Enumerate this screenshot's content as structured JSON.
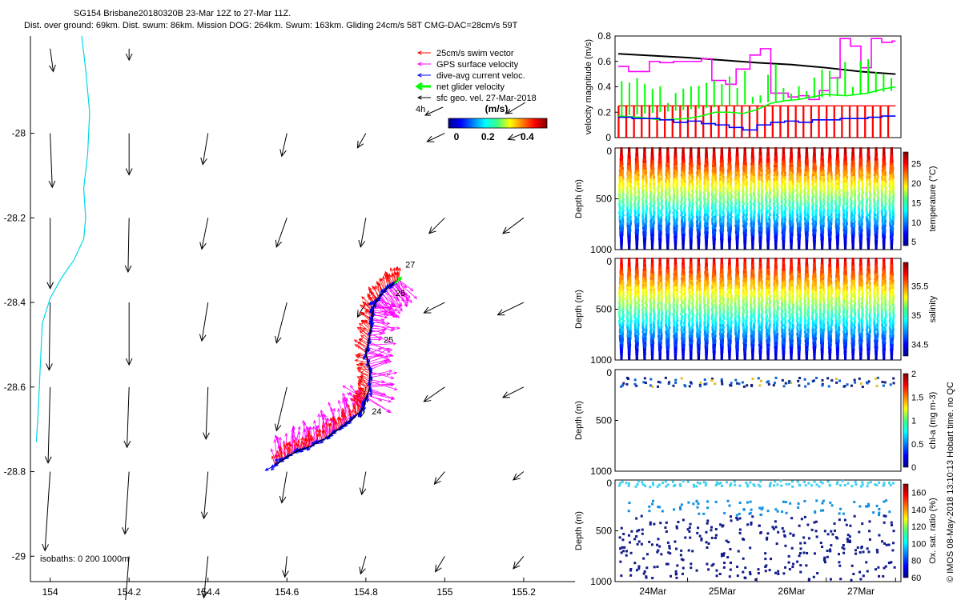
{
  "title": {
    "line1": "SG154 Brisbane20180320B 23-Mar 12Z to 27-Mar 11Z.",
    "line2": "Dist. over ground: 69km. Dist. swum: 86km. Mission DOG: 264km. Swum: 163km. Gliding 24cm/s 58T CMG-DAC=28cm/s 59T"
  },
  "footer": "© IMOS 08-May-2018 13:10:13 Hobart time. no QC",
  "colors": {
    "swim": "#ff0000",
    "gps": "#ff00ff",
    "dac": "#0000ff",
    "net": "#00ff00",
    "geo": "#000000",
    "isobath": "#00d8e8"
  },
  "chart_data": [
    {
      "type": "map",
      "name": "track-map",
      "xlim": [
        153.95,
        155.33
      ],
      "ylim": [
        -29.06,
        -27.77
      ],
      "xticks": [
        154,
        154.2,
        154.4,
        154.6,
        154.8,
        155,
        155.2
      ],
      "yticks": [
        -28,
        -28.2,
        -28.4,
        -28.6,
        -28.8,
        -29
      ],
      "xtick_labels": [
        "154",
        "154.2",
        "154.4",
        "154.6",
        "154.8",
        "155",
        "155.2"
      ],
      "ytick_labels": [
        "-28",
        "-28.2",
        "-28.4",
        "-28.6",
        "-28.8",
        "-29"
      ],
      "legend": {
        "position": "top-right",
        "entries": [
          {
            "label": "25cm/s swim vector",
            "color": "#ff0000"
          },
          {
            "label": "GPS surface velocity",
            "color": "#ff00ff"
          },
          {
            "label": "dive-avg current veloc.",
            "color": "#0000ff"
          },
          {
            "label": "net glider velocity",
            "color": "#00ff00"
          },
          {
            "label": "sfc geo. vel. 27-Mar-2018",
            "color": "#000000"
          }
        ]
      },
      "scale_label": "4h",
      "colorbar": {
        "title": "(m/s)",
        "ticks": [
          "0",
          "0.2",
          "0.4"
        ],
        "range": [
          0,
          0.5
        ]
      },
      "isobaths_label": "isobaths: 0   200  1000m",
      "isobath": [
        [
          154.08,
          -27.77
        ],
        [
          154.09,
          -27.85
        ],
        [
          154.1,
          -27.95
        ],
        [
          154.095,
          -28.05
        ],
        [
          154.085,
          -28.13
        ],
        [
          154.09,
          -28.2
        ],
        [
          154.085,
          -28.25
        ],
        [
          154.06,
          -28.3
        ],
        [
          154.03,
          -28.34
        ],
        [
          154.0,
          -28.39
        ],
        [
          153.98,
          -28.45
        ],
        [
          153.975,
          -28.55
        ],
        [
          153.97,
          -28.65
        ],
        [
          153.965,
          -28.73
        ]
      ],
      "track": [
        [
          154.57,
          -28.785
        ],
        [
          154.6,
          -28.765
        ],
        [
          154.63,
          -28.75
        ],
        [
          154.66,
          -28.74
        ],
        [
          154.7,
          -28.72
        ],
        [
          154.73,
          -28.7
        ],
        [
          154.76,
          -28.68
        ],
        [
          154.79,
          -28.655
        ],
        [
          154.8,
          -28.63
        ],
        [
          154.81,
          -28.6
        ],
        [
          154.81,
          -28.56
        ],
        [
          154.8,
          -28.52
        ],
        [
          154.81,
          -28.48
        ],
        [
          154.815,
          -28.44
        ],
        [
          154.82,
          -28.41
        ],
        [
          154.83,
          -28.39
        ],
        [
          154.85,
          -28.37
        ],
        [
          154.87,
          -28.355
        ],
        [
          154.885,
          -28.345
        ]
      ],
      "day_labels": [
        {
          "label": "24",
          "lon": 154.815,
          "lat": -28.665
        },
        {
          "label": "25",
          "lon": 154.845,
          "lat": -28.495
        },
        {
          "label": "26",
          "lon": 154.875,
          "lat": -28.385
        },
        {
          "label": "27",
          "lon": 154.9,
          "lat": -28.318
        }
      ],
      "geo_vectors": {
        "lons": [
          154,
          154.2,
          154.4,
          154.6,
          154.8,
          155,
          155.2
        ],
        "lats": [
          -27.8,
          -28,
          -28.2,
          -28.4,
          -28.6,
          -28.8,
          -29
        ],
        "vel": [
          [
            [
              0.03,
              -0.22
            ],
            [
              0,
              -0.11
            ],
            null,
            null,
            null,
            null,
            null
          ],
          [
            [
              0.02,
              -0.52
            ],
            [
              0,
              -0.4
            ],
            [
              -0.05,
              -0.3
            ],
            [
              -0.05,
              -0.22
            ],
            [
              -0.08,
              -0.14
            ],
            [
              -0.17,
              -0.08
            ],
            [
              -0.15,
              -0.06
            ]
          ],
          [
            [
              0,
              -0.68
            ],
            [
              -0.01,
              -0.52
            ],
            [
              -0.06,
              -0.3
            ],
            [
              -0.1,
              -0.28
            ],
            [
              -0.05,
              -0.28
            ],
            [
              -0.15,
              -0.15
            ],
            [
              -0.2,
              -0.15
            ]
          ],
          [
            [
              -0.01,
              -0.65
            ],
            [
              0,
              -0.6
            ],
            [
              -0.06,
              -0.37
            ],
            [
              -0.1,
              -0.39
            ],
            [
              -0.08,
              -0.14
            ],
            [
              -0.2,
              -0.1
            ],
            [
              -0.25,
              -0.12
            ]
          ],
          [
            [
              -0.02,
              -0.73
            ],
            [
              -0.02,
              -0.58
            ],
            [
              -0.02,
              -0.5
            ],
            [
              -0.1,
              -0.42
            ],
            [
              -0.05,
              -0.29
            ],
            [
              -0.2,
              -0.14
            ],
            [
              -0.2,
              -0.1
            ]
          ],
          [
            [
              -0.05,
              -0.76
            ],
            [
              -0.04,
              -0.6
            ],
            [
              -0.04,
              -0.45
            ],
            [
              -0.05,
              -0.3
            ],
            [
              -0.04,
              -0.22
            ],
            [
              -0.1,
              -0.12
            ],
            [
              -0.1,
              -0.08
            ]
          ],
          [
            [
              -0.04,
              -0.71
            ],
            [
              -0.04,
              -0.5
            ],
            [
              -0.04,
              -0.4
            ],
            [
              -0.02,
              -0.2
            ],
            [
              -0.05,
              -0.17
            ],
            [
              -0.09,
              -0.15
            ],
            [
              -0.1,
              -0.12
            ]
          ]
        ]
      }
    },
    {
      "type": "line",
      "name": "velocity-timeseries",
      "ylabel": "velocity magnitude (m/s)",
      "ylim": [
        0,
        0.8
      ],
      "yticks": [
        "0",
        "0.2",
        "0.4",
        "0.6",
        "0.8"
      ],
      "series": [
        {
          "name": "geo velocity",
          "color": "#000000",
          "step": false,
          "t": [
            0,
            0.5,
            1,
            1.5,
            2,
            2.5,
            3,
            3.5,
            4
          ],
          "values": [
            0.66,
            0.645,
            0.63,
            0.61,
            0.59,
            0.575,
            0.55,
            0.52,
            0.5
          ]
        },
        {
          "name": "GPS surface velocity",
          "color": "#ff00ff",
          "step": true,
          "t": [
            0,
            0.15,
            0.3,
            0.45,
            0.6,
            0.8,
            1.0,
            1.2,
            1.35,
            1.55,
            1.7,
            1.9,
            2.05,
            2.2,
            2.45,
            2.6,
            2.75,
            2.9,
            3.05,
            3.2,
            3.35,
            3.5,
            3.65,
            3.8,
            3.95
          ],
          "values": [
            0.56,
            0.52,
            0.52,
            0.6,
            0.59,
            0.6,
            0.6,
            0.62,
            0.45,
            0.42,
            0.54,
            0.65,
            0.7,
            0.35,
            0.32,
            0.33,
            0.3,
            0.37,
            0.47,
            0.78,
            0.72,
            0.55,
            0.78,
            0.75,
            0.76
          ]
        },
        {
          "name": "25cm/s swim vector",
          "color": "#ff0000",
          "step": false,
          "spiky": true,
          "base": 0.0,
          "level": 0.25,
          "t": [],
          "values": []
        },
        {
          "name": "net glider velocity",
          "color": "#00ff00",
          "step": false,
          "t": [
            0,
            0.3,
            0.6,
            1.0,
            1.2,
            1.4,
            1.6,
            1.8,
            2.0,
            2.2,
            2.4,
            2.6,
            2.8,
            3.0,
            3.3,
            3.6,
            3.8,
            4.0
          ],
          "values": [
            0.17,
            0.16,
            0.14,
            0.15,
            0.17,
            0.2,
            0.2,
            0.19,
            0.22,
            0.27,
            0.29,
            0.3,
            0.32,
            0.34,
            0.33,
            0.35,
            0.38,
            0.4
          ]
        },
        {
          "name": "dive-avg current veloc.",
          "color": "#0000ff",
          "step": true,
          "t": [
            0,
            0.2,
            0.4,
            0.6,
            0.8,
            1.0,
            1.2,
            1.4,
            1.6,
            1.8,
            2.0,
            2.2,
            2.4,
            2.6,
            2.8,
            3.0,
            3.2,
            3.4,
            3.6,
            3.8
          ],
          "values": [
            0.16,
            0.15,
            0.15,
            0.14,
            0.12,
            0.13,
            0.11,
            0.1,
            0.08,
            0.06,
            0.1,
            0.12,
            0.13,
            0.12,
            0.14,
            0.14,
            0.15,
            0.15,
            0.16,
            0.17
          ]
        }
      ]
    },
    {
      "type": "scatter",
      "name": "temperature-section",
      "ylabel": "Depth (m)",
      "clabel": "temperature (°C)",
      "ylim": [
        1000,
        0
      ],
      "yticks": [
        "0",
        "500",
        "1000"
      ],
      "cticks": [
        "5",
        "10",
        "15",
        "20",
        "25"
      ],
      "crange": [
        4,
        28
      ]
    },
    {
      "type": "scatter",
      "name": "salinity-section",
      "ylabel": "Depth (m)",
      "clabel": "salinity",
      "ylim": [
        1000,
        0
      ],
      "yticks": [
        "0",
        "500",
        "1000"
      ],
      "cticks": [
        "34.5",
        "35",
        "35.5"
      ],
      "crange": [
        34.3,
        35.9
      ]
    },
    {
      "type": "scatter",
      "name": "chla-section",
      "ylabel": "Depth (m)",
      "clabel": "chl-a (mg m-3)",
      "ylim": [
        1000,
        0
      ],
      "yticks": [
        "0",
        "500",
        "1000"
      ],
      "cticks": [
        "0",
        "0.5",
        "1",
        "1.5",
        "2"
      ],
      "crange": [
        0,
        2
      ]
    },
    {
      "type": "scatter",
      "name": "oxygen-section",
      "ylabel": "Depth (m)",
      "clabel": "Ox. sat. ratio (%)",
      "ylim": [
        1000,
        0
      ],
      "yticks": [
        "0",
        "500",
        "1000"
      ],
      "cticks": [
        "60",
        "80",
        "100",
        "120",
        "140",
        "160"
      ],
      "crange": [
        60,
        170
      ]
    }
  ],
  "time_axis": {
    "labels": [
      "24Mar",
      "25Mar",
      "26Mar",
      "27Mar"
    ],
    "t_start": 0,
    "t_end": 4
  }
}
